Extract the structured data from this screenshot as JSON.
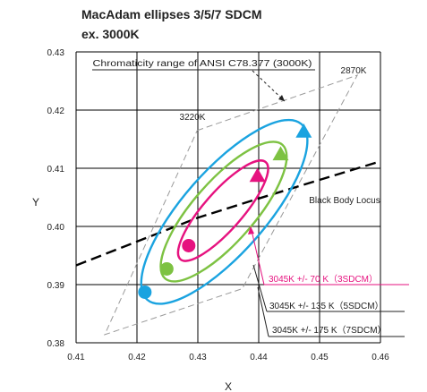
{
  "chart_data": {
    "type": "scatter",
    "title": "MacAdam ellipses 3/5/7 SDCM",
    "subtitle": "ex. 3000K",
    "xlabel": "X",
    "ylabel": "Y",
    "xlim": [
      0.41,
      0.46
    ],
    "ylim": [
      0.38,
      0.43
    ],
    "x_ticks": [
      "0.41",
      "0.42",
      "0.43",
      "0.44",
      "0.45",
      "0.46"
    ],
    "y_ticks": [
      "0.38",
      "0.39",
      "0.40",
      "0.41",
      "0.42",
      "0.43"
    ],
    "grid": true,
    "colors": {
      "sdcm3": "#e6127f",
      "sdcm5": "#7dc242",
      "sdcm7": "#1aa3e0",
      "locus": "#000000",
      "range": "#9a9a9a"
    },
    "ansi_range": {
      "label": "Chromaticity range of ANSI C78.377 (3000K)",
      "corners": [
        {
          "name": "3220K",
          "x": 0.4299,
          "y": 0.4165
        },
        {
          "name": "2870K",
          "x": 0.4562,
          "y": 0.426
        },
        {
          "name": "",
          "x": 0.4373,
          "y": 0.3893
        },
        {
          "name": "",
          "x": 0.4147,
          "y": 0.3814
        }
      ]
    },
    "black_body_locus": {
      "label": "Black Body Locus",
      "points": [
        [
          0.41,
          0.3933
        ],
        [
          0.43,
          0.4015
        ],
        [
          0.44,
          0.4048
        ],
        [
          0.46,
          0.4112
        ]
      ]
    },
    "ellipses": [
      {
        "label": "3045K +/-  70  K（3SDCM）",
        "key": "sdcm3",
        "start": [
          0.4285,
          0.3967
        ],
        "end": [
          0.4398,
          0.4087
        ],
        "rx": 0.0109,
        "ry": 0.0032,
        "angle_deg": 50
      },
      {
        "label": "3045K  +/- 135 K（5SDCM）",
        "key": "sdcm5",
        "start": [
          0.4249,
          0.3927
        ],
        "end": [
          0.4436,
          0.4124
        ],
        "rx": 0.015,
        "ry": 0.0051,
        "angle_deg": 50
      },
      {
        "label": "3045K  +/- 175 K（7SDCM）",
        "key": "sdcm7",
        "start": [
          0.4213,
          0.3887
        ],
        "end": [
          0.4474,
          0.4163
        ],
        "rx": 0.0197,
        "ry": 0.0069,
        "angle_deg": 50
      }
    ]
  }
}
